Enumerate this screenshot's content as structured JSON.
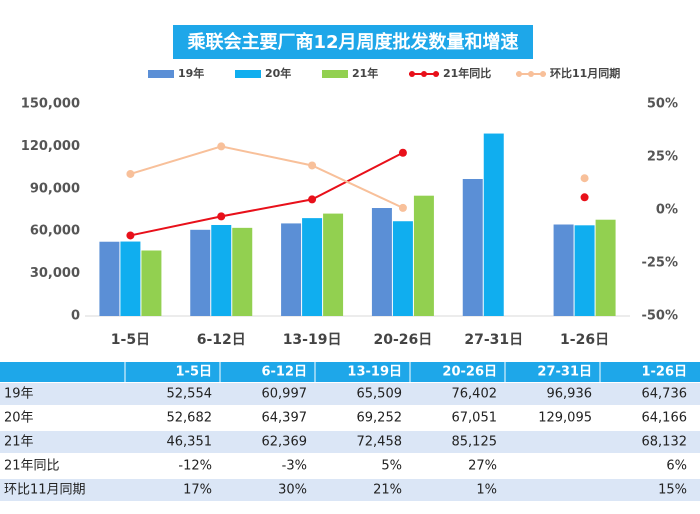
{
  "chart_data": {
    "type": "bar",
    "title": "乘联会主要厂商12月周度批发数量和增速",
    "categories": [
      "1-5日",
      "6-12日",
      "13-19日",
      "20-26日",
      "27-31日",
      "1-26日"
    ],
    "series": [
      {
        "name": "19年",
        "color": "#5b8fd6",
        "values": [
          52554,
          60997,
          65509,
          76402,
          96936,
          64736
        ],
        "value_labels": [
          "52,554",
          "60,997",
          "65,509",
          "76,402",
          "96,936",
          "64,736"
        ]
      },
      {
        "name": "20年",
        "color": "#10aeef",
        "values": [
          52682,
          64397,
          69252,
          67051,
          129095,
          64166
        ],
        "value_labels": [
          "52,682",
          "64,397",
          "69,252",
          "67,051",
          "129,095",
          "64,166"
        ]
      },
      {
        "name": "21年",
        "color": "#92d050",
        "values": [
          46351,
          62369,
          72458,
          85125,
          null,
          68132
        ],
        "value_labels": [
          "46,351",
          "62,369",
          "72,458",
          "85,125",
          null,
          "68,132"
        ]
      },
      {
        "name": "21年同比",
        "type": "line",
        "axis": "y2",
        "color": "#e8101a",
        "values": [
          -12,
          -3,
          5,
          27,
          null,
          6
        ],
        "value_labels": [
          "-12%",
          "-3%",
          "5%",
          "27%",
          null,
          "6%"
        ]
      },
      {
        "name": "环比11月同期",
        "type": "line",
        "axis": "y2",
        "color": "#f8c09a",
        "values": [
          17,
          30,
          21,
          1,
          null,
          15
        ],
        "value_labels": [
          "17%",
          "30%",
          "21%",
          "1%",
          null,
          "15%"
        ]
      }
    ],
    "ylim": [
      0,
      150000
    ],
    "yticks": [
      0,
      {
        "value": 30000,
        "label": "30,000"
      },
      {
        "value": 60000,
        "label": "60,000"
      },
      {
        "value": 90000,
        "label": "90,000"
      },
      {
        "value": 120000,
        "label": "120,000"
      },
      {
        "value": 150000,
        "label": "150,000"
      }
    ],
    "y2lim": [
      -50,
      50
    ],
    "y2ticks": [
      {
        "value": -50,
        "label": "-50%"
      },
      {
        "value": -25,
        "label": "-25%"
      },
      {
        "value": 0,
        "label": "0%"
      },
      {
        "value": 25,
        "label": "25%"
      },
      {
        "value": 50,
        "label": "50%"
      }
    ]
  }
}
